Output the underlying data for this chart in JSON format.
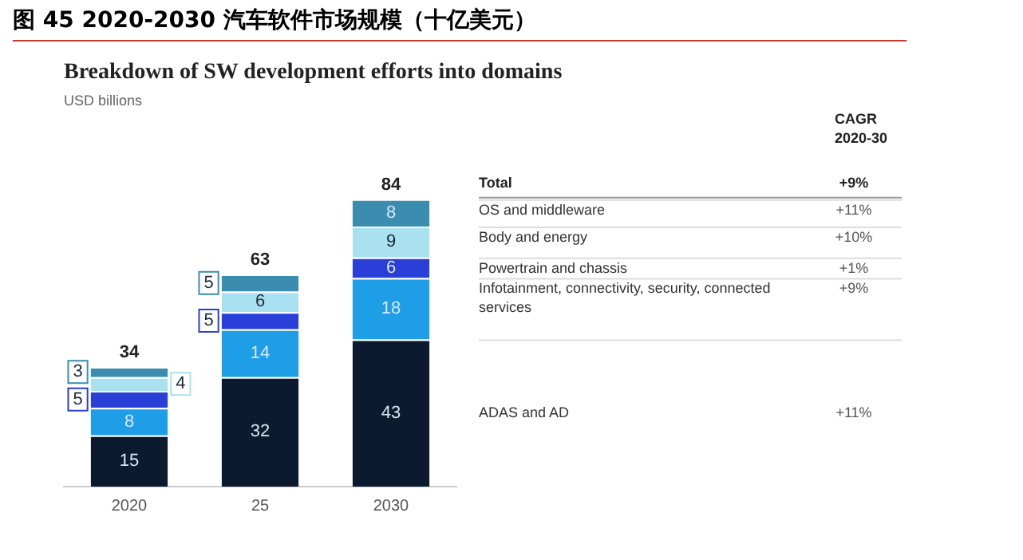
{
  "chart_data": {
    "type": "bar",
    "title": "图 45 2020-2030 汽车软件市场规模（十亿美元）",
    "subtitle": "Breakdown of SW development efforts into domains",
    "categories": [
      "2020",
      "25",
      "2030"
    ],
    "stacked": true,
    "data_labels": true,
    "totals": [
      "34",
      "63",
      "84"
    ],
    "tick_labels": "x",
    "grid": false,
    "legend": "right",
    "series": [
      {
        "name": "ADAS and AD",
        "color": "#0b1a2e",
        "values": [
          15,
          32,
          43
        ]
      },
      {
        "name": "Infotainment, connectivity, security, connected services",
        "color": "#1f9ee8",
        "values": [
          8,
          14,
          18
        ]
      },
      {
        "name": "Powertrain and chassis",
        "color": "#2a3ed8",
        "values": [
          5,
          5,
          6
        ]
      },
      {
        "name": "Body and energy",
        "color": "#a9e1f1",
        "values": [
          4,
          6,
          9
        ]
      },
      {
        "name": "OS and middleware",
        "color": "#3b8db0",
        "values": [
          3,
          5,
          8
        ]
      }
    ],
    "annotations": [
      "USD billions",
      "CAGR\n2020-30",
      "Total",
      "+9%",
      "+11%",
      "+9%",
      "+1%",
      "+10%",
      "+11%"
    ]
  }
}
